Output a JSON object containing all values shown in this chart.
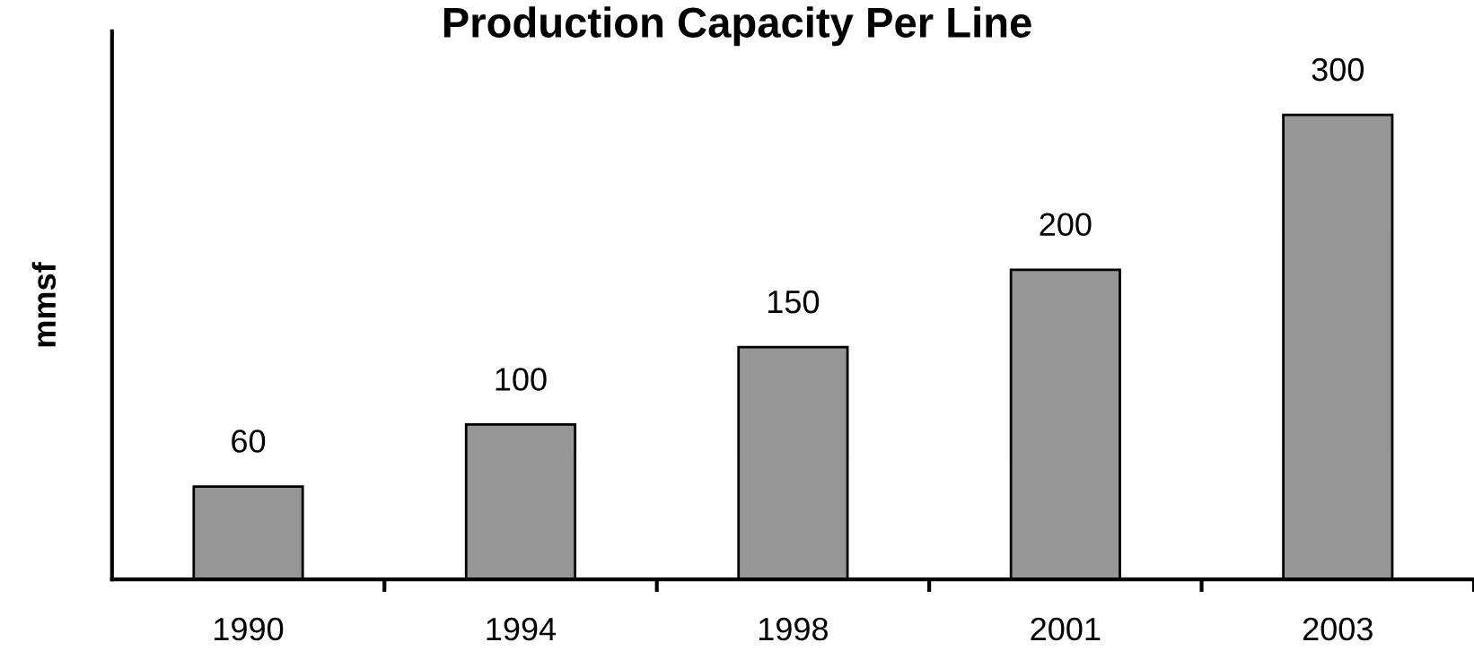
{
  "chart_data": {
    "type": "bar",
    "title": "Production Capacity Per Line",
    "ylabel": "mmsf",
    "categories": [
      "1990",
      "1994",
      "1998",
      "2001",
      "2003"
    ],
    "values": [
      60,
      100,
      150,
      200,
      300
    ],
    "color": "#969696",
    "data_labels": true,
    "grid": false,
    "legend": false
  }
}
